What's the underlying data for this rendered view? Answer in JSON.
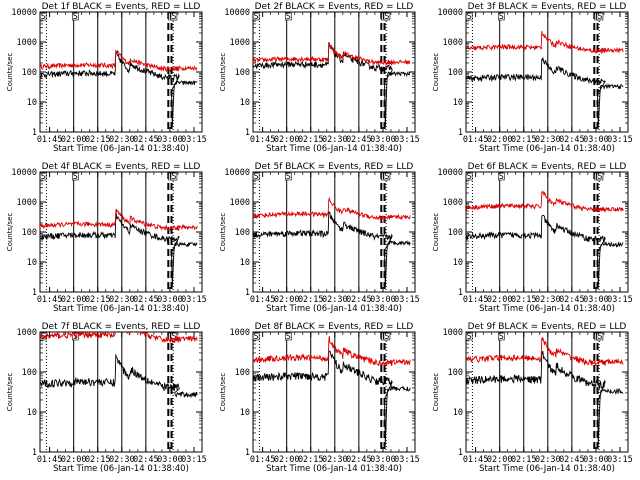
{
  "chart_data": [
    {
      "type": "line",
      "title": "Det 1f BLACK = Events, RED = LLD",
      "ylabel": "Counts/sec",
      "xlabel": "Start Time (06-Jan-14 01:38:40)",
      "ylim": [
        1,
        10000
      ],
      "yscale": "log",
      "red_base": 150,
      "black_base": 80,
      "black_drop": true
    },
    {
      "type": "line",
      "title": "Det 2f BLACK = Events, RED = LLD",
      "ylabel": "Counts/sec",
      "xlabel": "Start Time (06-Jan-14 01:38:40)",
      "ylim": [
        1,
        10000
      ],
      "yscale": "log",
      "red_base": 240,
      "black_base": 160,
      "black_drop": true
    },
    {
      "type": "line",
      "title": "Det 3f BLACK = Events, RED = LLD",
      "ylabel": "Counts/sec",
      "xlabel": "Start Time (06-Jan-14 01:38:40)",
      "ylim": [
        1,
        10000
      ],
      "yscale": "log",
      "red_base": 600,
      "black_base": 60,
      "black_drop": true
    },
    {
      "type": "line",
      "title": "Det 4f BLACK = Events, RED = LLD",
      "ylabel": "Counts/sec",
      "xlabel": "Start Time (06-Jan-14 01:38:40)",
      "ylim": [
        1,
        10000
      ],
      "yscale": "log",
      "red_base": 160,
      "black_base": 70,
      "black_drop": true
    },
    {
      "type": "line",
      "title": "Det 5f BLACK = Events, RED = LLD",
      "ylabel": "Counts/sec",
      "xlabel": "Start Time (06-Jan-14 01:38:40)",
      "ylim": [
        1,
        10000
      ],
      "yscale": "log",
      "red_base": 350,
      "black_base": 80,
      "black_drop": true
    },
    {
      "type": "line",
      "title": "Det 6f BLACK = Events, RED = LLD",
      "ylabel": "Counts/sec",
      "xlabel": "Start Time (06-Jan-14 01:38:40)",
      "ylim": [
        1,
        10000
      ],
      "yscale": "log",
      "red_base": 650,
      "black_base": 70,
      "black_drop": true
    },
    {
      "type": "line",
      "title": "Det 7f BLACK = Events, RED = LLD",
      "ylabel": "Counts/sec",
      "xlabel": "Start Time (06-Jan-14 01:38:40)",
      "ylim": [
        1,
        1000
      ],
      "yscale": "log",
      "red_base": 750,
      "black_base": 50,
      "black_drop": false
    },
    {
      "type": "line",
      "title": "Det 8f BLACK = Events, RED = LLD",
      "ylabel": "Counts/sec",
      "xlabel": "Start Time (06-Jan-14 01:38:40)",
      "ylim": [
        1,
        1000
      ],
      "yscale": "log",
      "red_base": 200,
      "black_base": 70,
      "black_drop": true
    },
    {
      "type": "line",
      "title": "Det 9f BLACK = Events, RED = LLD",
      "ylabel": "Counts/sec",
      "xlabel": "Start Time (06-Jan-14 01:38:40)",
      "ylim": [
        1,
        1000
      ],
      "yscale": "log",
      "red_base": 200,
      "black_base": 60,
      "black_drop": true
    }
  ],
  "xticks": [
    "01:45",
    "02:00",
    "02:15",
    "02:30",
    "02:45",
    "03:00",
    "03:15"
  ],
  "xtick_minutes": [
    105,
    120,
    135,
    150,
    165,
    180,
    195
  ],
  "x_range_minutes": [
    99,
    200
  ],
  "solid_markers_minutes": [
    120,
    135,
    150,
    165
  ],
  "dotted_markers_minutes": [
    103,
    182
  ],
  "dashed_markers_minutes": [
    179,
    181
  ],
  "box_labels": [
    "S",
    "S",
    "E",
    "S"
  ],
  "yticks_4": [
    "1",
    "10",
    "100",
    "1000",
    "10000"
  ],
  "yticks_3": [
    "1",
    "10",
    "100",
    "1000"
  ],
  "colors": {
    "events": "#000000",
    "lld": "#dd0000"
  }
}
